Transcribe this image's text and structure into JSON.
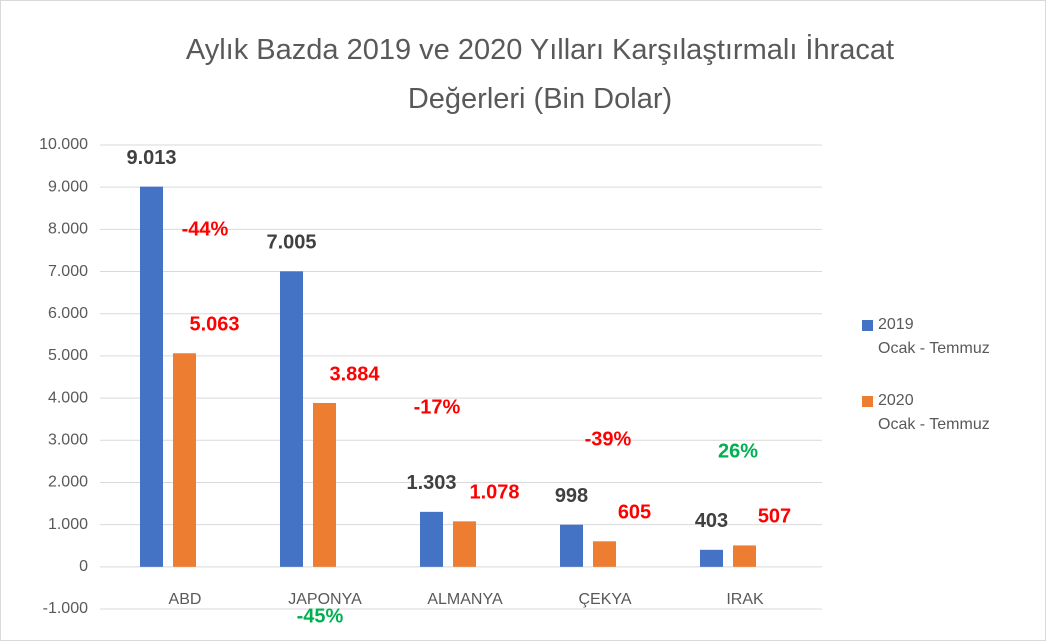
{
  "chart_data": {
    "type": "bar",
    "title": "Aylık Bazda 2019 ve 2020 Yılları Karşılaştırmalı İhracat\nDeğerleri (Bin Dolar)",
    "categories": [
      "ABD",
      "JAPONYA",
      "ALMANYA",
      "ÇEKYA",
      "IRAK"
    ],
    "series": [
      {
        "name": "2019\nOcak - Temmuz",
        "color": "#4472c4",
        "label_color": "#404040",
        "values": [
          9013,
          7005,
          1303,
          998,
          403
        ],
        "value_labels": [
          "9.013",
          "7.005",
          "1.303",
          "998",
          "403"
        ]
      },
      {
        "name": "2020\nOcak - Temmuz",
        "color": "#ed7d31",
        "label_color": "#ff0000",
        "values": [
          5063,
          3884,
          1078,
          605,
          507
        ],
        "value_labels": [
          "5.063",
          "3.884",
          "1.078",
          "605",
          "507"
        ]
      }
    ],
    "annotations": [
      {
        "text": "-44%",
        "color": "#ff0000"
      },
      {
        "text": "-45%",
        "color": "#00b050"
      },
      {
        "text": "-17%",
        "color": "#ff0000"
      },
      {
        "text": "-39%",
        "color": "#ff0000"
      },
      {
        "text": "26%",
        "color": "#00b050"
      }
    ],
    "ylim": [
      -1000,
      10000
    ],
    "yticks": [
      {
        "value": -1000,
        "label": "-1.000"
      },
      0,
      {
        "value": 1000,
        "label": "1.000"
      },
      {
        "value": 2000,
        "label": "2.000"
      },
      {
        "value": 3000,
        "label": "3.000"
      },
      {
        "value": 4000,
        "label": "4.000"
      },
      {
        "value": 5000,
        "label": "5.000"
      },
      {
        "value": 6000,
        "label": "6.000"
      },
      {
        "value": 7000,
        "label": "7.000"
      },
      {
        "value": 8000,
        "label": "8.000"
      },
      {
        "value": 9000,
        "label": "9.000"
      },
      {
        "value": 10000,
        "label": "10.000"
      }
    ],
    "grid": true,
    "legend": "right"
  }
}
